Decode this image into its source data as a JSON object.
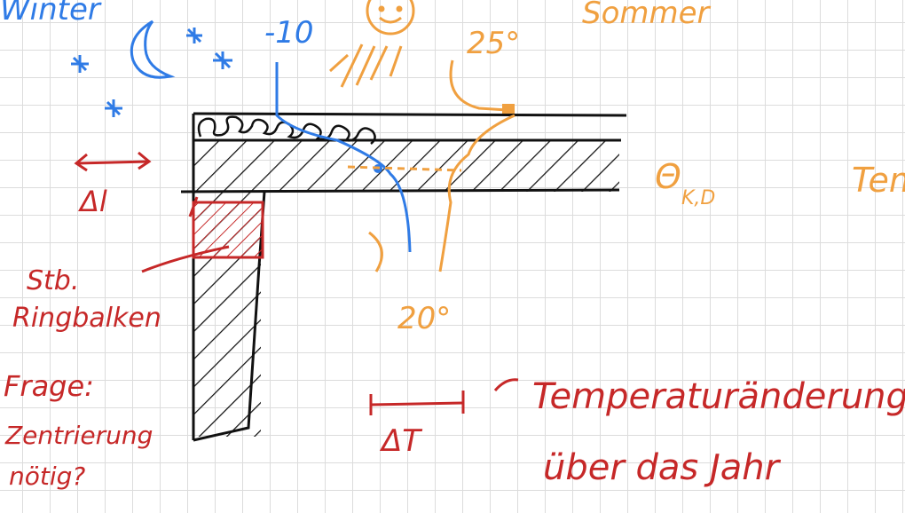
{
  "labels": {
    "winter": "Winter",
    "minus10": "-10",
    "sommer": "Sommer",
    "t25": "25°",
    "t20": "20°",
    "theta": "Θ",
    "theta_sub": "K,D",
    "tem": "Tem",
    "delta_l": "Δl",
    "delta_t": "ΔT",
    "stb": "Stb.",
    "ringbalken": "Ringbalken",
    "frage": "Frage:",
    "zentrierung": "Zentrierung",
    "noetig": "nötig?",
    "temperaturaenderung": "Temperaturänderung",
    "ueber_das_jahr": "über das Jahr"
  },
  "colors": {
    "ink": "#111111",
    "blue": "#2f7be6",
    "orange": "#f0a040",
    "red": "#c62828"
  }
}
